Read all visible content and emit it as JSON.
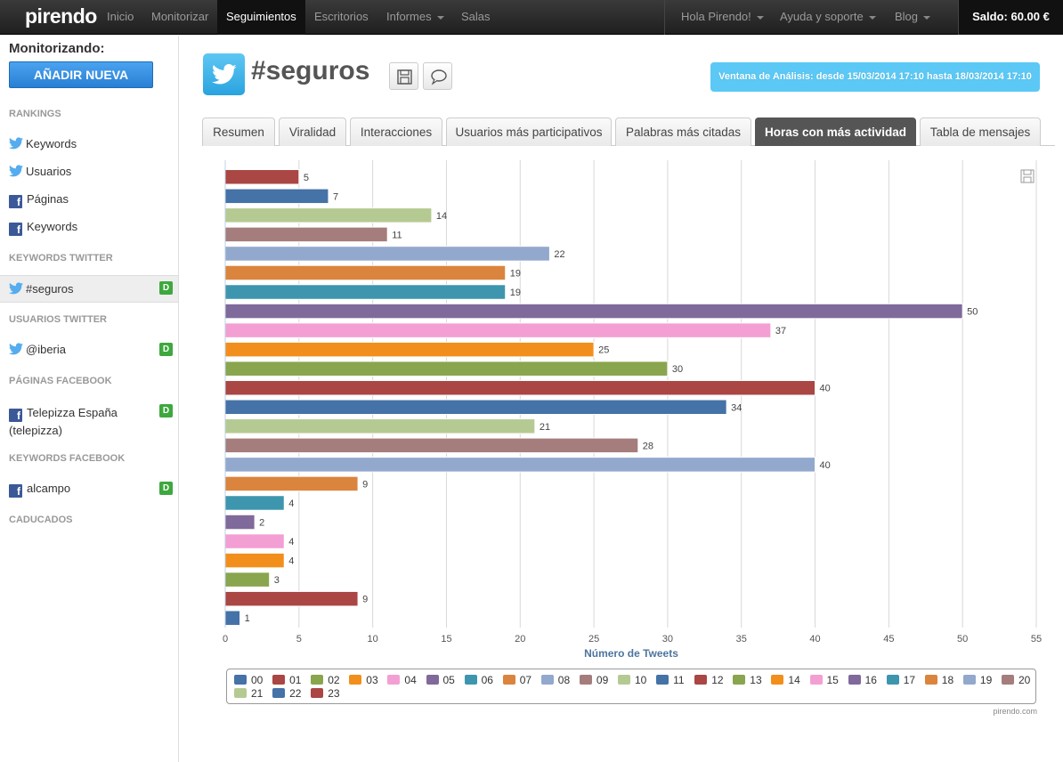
{
  "app": {
    "logo": "pirendo",
    "nav": [
      "Inicio",
      "Monitorizar",
      "Seguimientos",
      "Escritorios",
      "Informes",
      "Salas"
    ],
    "nav_active": "Seguimientos",
    "right_nav": [
      "Hola Pirendo!",
      "Ayuda y soporte",
      "Blog"
    ],
    "balance": "Saldo: 60.00 €"
  },
  "sidebar": {
    "title": "Monitorizando:",
    "add_button": "AÑADIR NUEVA",
    "sections": {
      "rankings": "RANKINGS",
      "keywords_twitter": "KEYWORDS TWITTER",
      "usuarios_twitter": "USUARIOS TWITTER",
      "paginas_facebook": "PÁGINAS FACEBOOK",
      "keywords_facebook": "KEYWORDS FACEBOOK",
      "caducados": "CADUCADOS"
    },
    "rankings": [
      "Keywords",
      "Usuarios",
      "Páginas",
      "Keywords"
    ],
    "kw_twitter": "#seguros",
    "user_twitter": "@iberia",
    "fb_page_line1": "Telepizza España",
    "fb_page_line2": "(telepizza)",
    "kw_facebook": "alcampo",
    "badge": "D"
  },
  "header": {
    "title": "#seguros",
    "window": "Ventana de Análisis: desde 15/03/2014 17:10 hasta 18/03/2014 17:10"
  },
  "tabs": [
    "Resumen",
    "Viralidad",
    "Interacciones",
    "Usuarios más participativos",
    "Palabras más citadas",
    "Horas con más actividad",
    "Tabla de mensajes"
  ],
  "tab_active": "Horas con más actividad",
  "chart_data": {
    "type": "bar",
    "orientation": "horizontal",
    "xlabel": "Número de Tweets",
    "xlim": [
      0,
      55
    ],
    "xticks": [
      0,
      5,
      10,
      15,
      20,
      25,
      30,
      35,
      40,
      45,
      50,
      55
    ],
    "grid": true,
    "legend_position": "bottom",
    "categories": [
      "00",
      "01",
      "02",
      "03",
      "04",
      "05",
      "06",
      "07",
      "08",
      "09",
      "10",
      "11",
      "12",
      "13",
      "14",
      "15",
      "16",
      "17",
      "18",
      "19",
      "20",
      "21",
      "22",
      "23"
    ],
    "values": [
      1,
      9,
      3,
      4,
      4,
      2,
      4,
      9,
      40,
      28,
      21,
      34,
      40,
      30,
      25,
      37,
      50,
      19,
      19,
      22,
      11,
      14,
      7,
      5
    ],
    "colors": [
      "#4572a7",
      "#aa4643",
      "#89a54e",
      "#f28f1c",
      "#f39fd3",
      "#80699b",
      "#3d96ae",
      "#db843d",
      "#92a8cd",
      "#a47d7c",
      "#b5ca92",
      "#4572a7",
      "#aa4643",
      "#89a54e",
      "#f28f1c",
      "#f39fd3",
      "#80699b",
      "#3d96ae",
      "#db843d",
      "#92a8cd",
      "#a47d7c",
      "#b5ca92",
      "#4572a7",
      "#aa4643"
    ],
    "credit": "pirendo.com"
  }
}
